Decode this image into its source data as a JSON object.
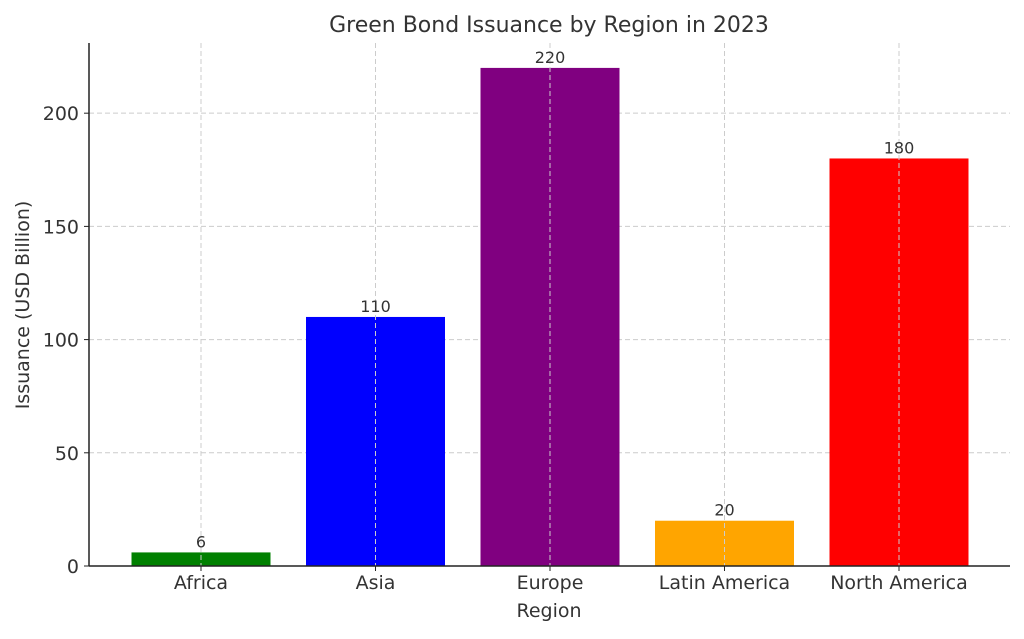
{
  "chart_data": {
    "type": "bar",
    "title": "Green Bond Issuance by Region in 2023",
    "xlabel": "Region",
    "ylabel": "Issuance (USD Billion)",
    "categories": [
      "Africa",
      "Asia",
      "Europe",
      "Latin America",
      "North America"
    ],
    "values": [
      6,
      110,
      220,
      20,
      180
    ],
    "data_labels": [
      "6",
      "110",
      "220",
      "20",
      "180"
    ],
    "colors": [
      "#008000",
      "#0000ff",
      "#800080",
      "#ffa500",
      "#ff0000"
    ],
    "ylim": [
      0,
      231
    ],
    "yticks": [
      0,
      50,
      100,
      150,
      200
    ],
    "ytick_labels": [
      "0",
      "50",
      "100",
      "150",
      "200"
    ],
    "grid": true,
    "grid_style": "dashed",
    "grid_color": "#cccccc"
  }
}
